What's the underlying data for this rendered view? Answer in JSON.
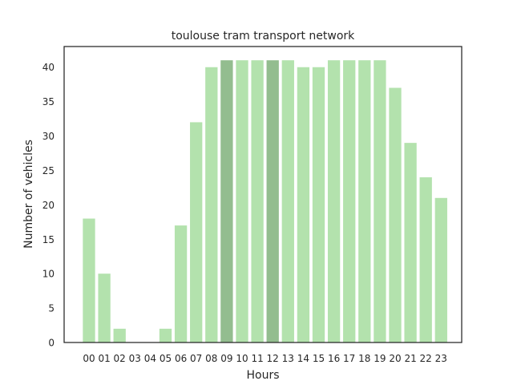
{
  "chart_data": {
    "type": "bar",
    "title": "toulouse tram transport network",
    "xlabel": "Hours",
    "ylabel": "Number of vehicles",
    "categories": [
      "00",
      "01",
      "02",
      "03",
      "04",
      "05",
      "06",
      "07",
      "08",
      "09",
      "10",
      "11",
      "12",
      "13",
      "14",
      "15",
      "16",
      "17",
      "18",
      "19",
      "20",
      "21",
      "22",
      "23"
    ],
    "values": [
      18,
      10,
      2,
      0,
      0,
      2,
      17,
      32,
      40,
      41,
      41,
      41,
      41,
      41,
      40,
      40,
      41,
      41,
      41,
      41,
      37,
      29,
      24,
      21
    ],
    "highlighted": [
      "09",
      "12"
    ],
    "ylim": [
      0,
      43
    ],
    "yticks": [
      0,
      5,
      10,
      15,
      20,
      25,
      30,
      35,
      40
    ],
    "grid": false,
    "colors": {
      "bar": "#b3e2ad",
      "bar_highlight": "#93bd8f",
      "axes": "#262626",
      "text": "#262626"
    }
  }
}
